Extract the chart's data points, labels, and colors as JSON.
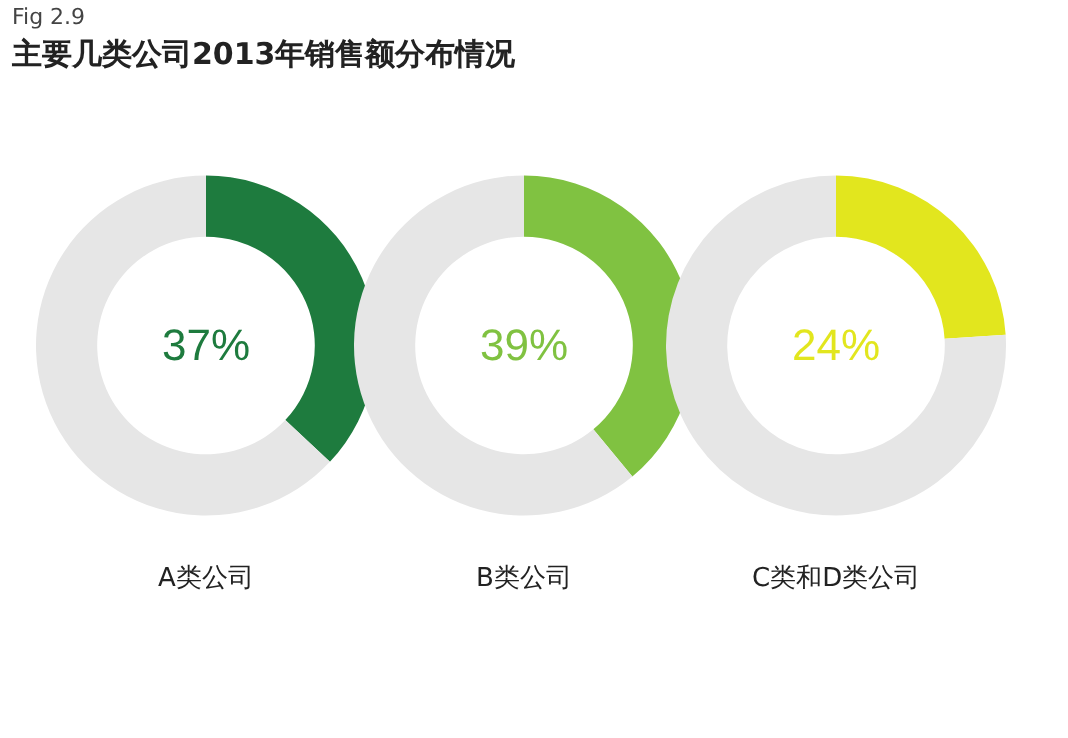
{
  "chart_data": [
    {
      "type": "donut",
      "title": "主要几类公司2013年销售额分布情况",
      "annotations": [
        "Fig 2.9"
      ],
      "xlabel": "A类公司",
      "categories": [
        null,
        null
      ],
      "values": [
        37,
        63
      ],
      "colors": [
        "#1e7b3e",
        "#e6e6e6"
      ],
      "value_labels": [
        "37%",
        null
      ]
    },
    {
      "type": "donut",
      "xlabel": "B类公司",
      "categories": [
        null,
        null
      ],
      "values": [
        39,
        61
      ],
      "colors": [
        "#80c241",
        "#e6e6e6"
      ],
      "value_labels": [
        "39%",
        null
      ]
    },
    {
      "type": "donut",
      "xlabel": "C类和D类公司",
      "categories": [
        null,
        null
      ],
      "values": [
        24,
        76
      ],
      "colors": [
        "#e2e61e",
        "#e6e6e6"
      ],
      "value_labels": [
        "24%",
        null
      ]
    }
  ]
}
